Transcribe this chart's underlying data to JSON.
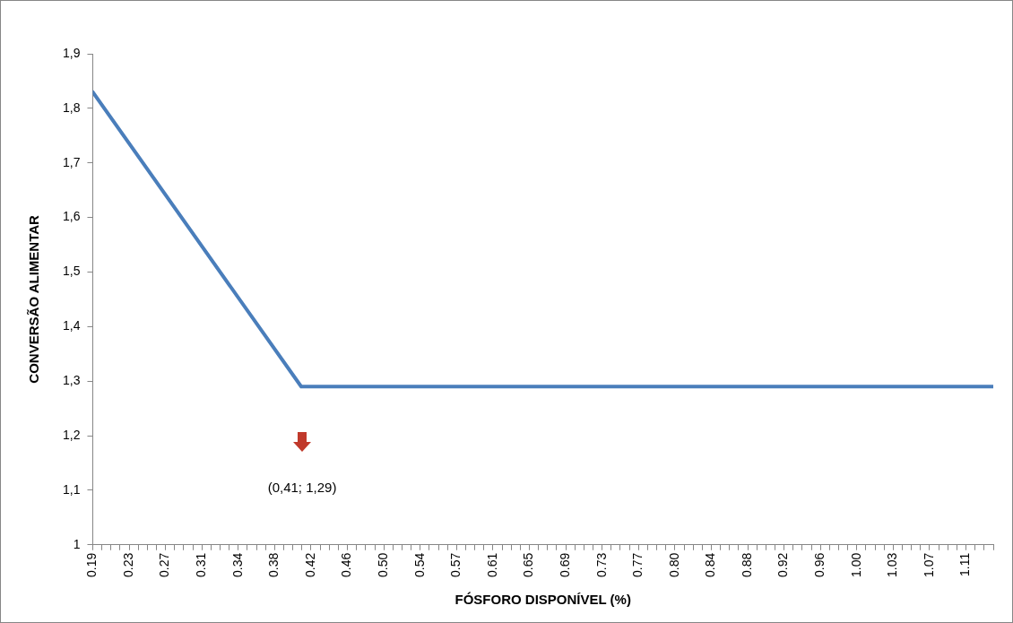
{
  "chart_data": {
    "type": "line",
    "xlabel": "FÓSFORO DISPONÍVEL (%)",
    "ylabel": "CONVERSÃO ALIMENTAR",
    "series": [
      {
        "color": "#4a7ebb",
        "x": [
          0.19,
          0.41,
          1.1404
        ],
        "values": [
          1.83,
          1.29,
          1.29
        ]
      }
    ],
    "xlim": [
      0.19,
      1.1404
    ],
    "xticks": [
      {
        "value": 0.19,
        "label": "0.19"
      },
      {
        "value": 0.1996,
        "label": null
      },
      {
        "value": 0.2092,
        "label": null
      },
      {
        "value": 0.2188,
        "label": null
      },
      {
        "value": 0.2284,
        "label": "0.23"
      },
      {
        "value": 0.238,
        "label": null
      },
      {
        "value": 0.2476,
        "label": null
      },
      {
        "value": 0.2572,
        "label": null
      },
      {
        "value": 0.2668,
        "label": "0.27"
      },
      {
        "value": 0.2764,
        "label": null
      },
      {
        "value": 0.286,
        "label": null
      },
      {
        "value": 0.2956,
        "label": null
      },
      {
        "value": 0.3052,
        "label": "0.31"
      },
      {
        "value": 0.3148,
        "label": null
      },
      {
        "value": 0.3244,
        "label": null
      },
      {
        "value": 0.334,
        "label": null
      },
      {
        "value": 0.3436,
        "label": "0.34"
      },
      {
        "value": 0.3532,
        "label": null
      },
      {
        "value": 0.3628,
        "label": null
      },
      {
        "value": 0.3724,
        "label": null
      },
      {
        "value": 0.382,
        "label": "0.38"
      },
      {
        "value": 0.3916,
        "label": null
      },
      {
        "value": 0.4012,
        "label": null
      },
      {
        "value": 0.4108,
        "label": null
      },
      {
        "value": 0.4204,
        "label": "0.42"
      },
      {
        "value": 0.43,
        "label": null
      },
      {
        "value": 0.4396,
        "label": null
      },
      {
        "value": 0.4492,
        "label": null
      },
      {
        "value": 0.4588,
        "label": "0.46"
      },
      {
        "value": 0.4684,
        "label": null
      },
      {
        "value": 0.478,
        "label": null
      },
      {
        "value": 0.4876,
        "label": null
      },
      {
        "value": 0.4972,
        "label": "0.50"
      },
      {
        "value": 0.5068,
        "label": null
      },
      {
        "value": 0.5164,
        "label": null
      },
      {
        "value": 0.526,
        "label": null
      },
      {
        "value": 0.5356,
        "label": "0.54"
      },
      {
        "value": 0.5452,
        "label": null
      },
      {
        "value": 0.5548,
        "label": null
      },
      {
        "value": 0.5644,
        "label": null
      },
      {
        "value": 0.574,
        "label": "0.57"
      },
      {
        "value": 0.5836,
        "label": null
      },
      {
        "value": 0.5932,
        "label": null
      },
      {
        "value": 0.6028,
        "label": null
      },
      {
        "value": 0.6124,
        "label": "0.61"
      },
      {
        "value": 0.622,
        "label": null
      },
      {
        "value": 0.6316,
        "label": null
      },
      {
        "value": 0.6412,
        "label": null
      },
      {
        "value": 0.6508,
        "label": "0.65"
      },
      {
        "value": 0.6604,
        "label": null
      },
      {
        "value": 0.67,
        "label": null
      },
      {
        "value": 0.6796,
        "label": null
      },
      {
        "value": 0.6892,
        "label": "0.69"
      },
      {
        "value": 0.6988,
        "label": null
      },
      {
        "value": 0.7084,
        "label": null
      },
      {
        "value": 0.718,
        "label": null
      },
      {
        "value": 0.7276,
        "label": "0.73"
      },
      {
        "value": 0.7372,
        "label": null
      },
      {
        "value": 0.7468,
        "label": null
      },
      {
        "value": 0.7564,
        "label": null
      },
      {
        "value": 0.766,
        "label": "0.77"
      },
      {
        "value": 0.7756,
        "label": null
      },
      {
        "value": 0.7852,
        "label": null
      },
      {
        "value": 0.7948,
        "label": null
      },
      {
        "value": 0.8044,
        "label": "0.80"
      },
      {
        "value": 0.814,
        "label": null
      },
      {
        "value": 0.8236,
        "label": null
      },
      {
        "value": 0.8332,
        "label": null
      },
      {
        "value": 0.8428,
        "label": "0.84"
      },
      {
        "value": 0.8524,
        "label": null
      },
      {
        "value": 0.862,
        "label": null
      },
      {
        "value": 0.8716,
        "label": null
      },
      {
        "value": 0.8812,
        "label": "0.88"
      },
      {
        "value": 0.8908,
        "label": null
      },
      {
        "value": 0.9004,
        "label": null
      },
      {
        "value": 0.91,
        "label": null
      },
      {
        "value": 0.9196,
        "label": "0.92"
      },
      {
        "value": 0.9292,
        "label": null
      },
      {
        "value": 0.9388,
        "label": null
      },
      {
        "value": 0.9484,
        "label": null
      },
      {
        "value": 0.958,
        "label": "0.96"
      },
      {
        "value": 0.9676,
        "label": null
      },
      {
        "value": 0.9772,
        "label": null
      },
      {
        "value": 0.9868,
        "label": null
      },
      {
        "value": 0.9964,
        "label": "1.00"
      },
      {
        "value": 1.006,
        "label": null
      },
      {
        "value": 1.0156,
        "label": null
      },
      {
        "value": 1.0252,
        "label": null
      },
      {
        "value": 1.0348,
        "label": "1.03"
      },
      {
        "value": 1.0444,
        "label": null
      },
      {
        "value": 1.054,
        "label": null
      },
      {
        "value": 1.0636,
        "label": null
      },
      {
        "value": 1.0732,
        "label": "1.07"
      },
      {
        "value": 1.0828,
        "label": null
      },
      {
        "value": 1.0924,
        "label": null
      },
      {
        "value": 1.102,
        "label": null
      },
      {
        "value": 1.1116,
        "label": "1.11"
      },
      {
        "value": 1.1212,
        "label": null
      },
      {
        "value": 1.1308,
        "label": null
      },
      {
        "value": 1.1404,
        "label": null
      }
    ],
    "ylim": [
      1,
      1.9
    ],
    "yticks": [
      1,
      {
        "value": 1.1,
        "label": "1,1"
      },
      {
        "value": 1.2,
        "label": "1,2"
      },
      {
        "value": 1.3,
        "label": "1,3"
      },
      {
        "value": 1.4,
        "label": "1,4"
      },
      {
        "value": 1.5,
        "label": "1,5"
      },
      {
        "value": 1.6,
        "label": "1,6"
      },
      {
        "value": 1.7,
        "label": "1,7"
      },
      {
        "value": 1.8,
        "label": "1,8"
      },
      {
        "value": 1.9,
        "label": "1,9"
      }
    ],
    "annotations": [
      "(0,41; 1,29)"
    ],
    "grid": false,
    "legend": false,
    "marker": "none",
    "line_style": "solid"
  }
}
